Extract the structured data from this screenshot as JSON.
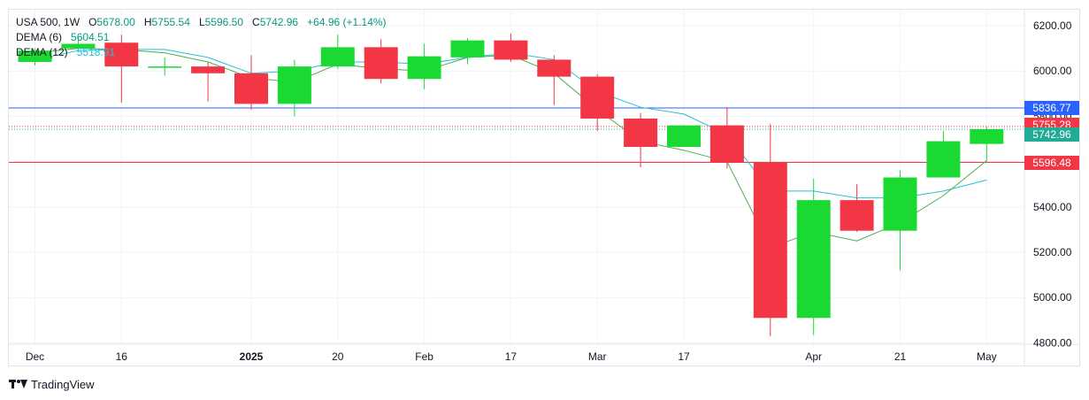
{
  "legend": {
    "symbol": "USA 500, 1W",
    "o_label": "O",
    "o_value": "5678.00",
    "h_label": "H",
    "h_value": "5755.54",
    "l_label": "L",
    "l_value": "5596.50",
    "c_label": "C",
    "c_value": "5742.96",
    "change": "+64.96 (+1.14%)",
    "dema6_label": "DEMA (6)",
    "dema6_value": "5604.51",
    "dema12_label": "DEMA (12)",
    "dema12_value": "5518.91"
  },
  "branding": {
    "text": "TradingView",
    "icon": "tradingview-logo-icon"
  },
  "price_tags": [
    {
      "label": "5836.77",
      "value": 5836.77,
      "color": "#2962ff"
    },
    {
      "label": "5755.28",
      "value": 5755.28,
      "color": "#f23645"
    },
    {
      "label": "5742.96",
      "value": 5742.96,
      "color": "#22ab94"
    },
    {
      "label": "5596.48",
      "value": 5596.48,
      "color": "#f23645"
    }
  ],
  "colors": {
    "up": "#1ad933",
    "down": "#f23645",
    "grid": "#f0f3fa",
    "axis_text": "#131722",
    "dema6": "#4caf50",
    "dema12": "#22c2d6",
    "line_blue": "#2962ff",
    "line_red": "#f23645"
  },
  "chart_data": {
    "type": "candlestick",
    "symbol": "USA 500",
    "interval": "1W",
    "x_tick_labels": [
      "Dec",
      "16",
      "2025",
      "20",
      "Feb",
      "17",
      "Mar",
      "17",
      "Apr",
      "21",
      "May"
    ],
    "x_tick_index": [
      0,
      2,
      5,
      7,
      9,
      11,
      13,
      15,
      18,
      20,
      22
    ],
    "y_ticks": [
      4800,
      5000,
      5200,
      5400,
      5600,
      5800,
      6000,
      6200
    ],
    "y_tick_labels": [
      "4800.00",
      "5000.00",
      "5200.00",
      "5400.00",
      "5600.00",
      "5800.00",
      "6000.00",
      "6200.00"
    ],
    "ylim": [
      4700,
      6290
    ],
    "grid": true,
    "candles": [
      {
        "o": 6040,
        "h": 6100,
        "l": 6025,
        "c": 6090
      },
      {
        "o": 6100,
        "h": 6150,
        "l": 6090,
        "c": 6120
      },
      {
        "o": 6125,
        "h": 6160,
        "l": 5860,
        "c": 6020
      },
      {
        "o": 6020,
        "h": 6060,
        "l": 5980,
        "c": 6020
      },
      {
        "o": 6020,
        "h": 6040,
        "l": 5865,
        "c": 5990
      },
      {
        "o": 5990,
        "h": 6070,
        "l": 5830,
        "c": 5855
      },
      {
        "o": 5855,
        "h": 6050,
        "l": 5800,
        "c": 6020
      },
      {
        "o": 6020,
        "h": 6160,
        "l": 6010,
        "c": 6105
      },
      {
        "o": 6105,
        "h": 6140,
        "l": 5945,
        "c": 5965
      },
      {
        "o": 5965,
        "h": 6120,
        "l": 5920,
        "c": 6065
      },
      {
        "o": 6060,
        "h": 6145,
        "l": 6030,
        "c": 6135
      },
      {
        "o": 6135,
        "h": 6165,
        "l": 6040,
        "c": 6050
      },
      {
        "o": 6050,
        "h": 6070,
        "l": 5850,
        "c": 5975
      },
      {
        "o": 5975,
        "h": 5985,
        "l": 5735,
        "c": 5790
      },
      {
        "o": 5790,
        "h": 5815,
        "l": 5575,
        "c": 5665
      },
      {
        "o": 5665,
        "h": 5760,
        "l": 5665,
        "c": 5760
      },
      {
        "o": 5760,
        "h": 5840,
        "l": 5570,
        "c": 5595
      },
      {
        "o": 5595,
        "h": 5765,
        "l": 4830,
        "c": 4910
      },
      {
        "o": 4910,
        "h": 5525,
        "l": 4835,
        "c": 5430
      },
      {
        "o": 5430,
        "h": 5500,
        "l": 5290,
        "c": 5295
      },
      {
        "o": 5295,
        "h": 5560,
        "l": 5120,
        "c": 5530
      },
      {
        "o": 5530,
        "h": 5735,
        "l": 5530,
        "c": 5690
      },
      {
        "o": 5678,
        "h": 5755.54,
        "l": 5596.5,
        "c": 5742.96
      }
    ],
    "dema6": [
      6080,
      6100,
      6095,
      6080,
      6040,
      5970,
      5950,
      6030,
      6010,
      6000,
      6060,
      6070,
      5990,
      5830,
      5690,
      5650,
      5600,
      5220,
      5290,
      5250,
      5330,
      5450,
      5604.51
    ],
    "dema12": [
      6050,
      6090,
      6095,
      6095,
      6060,
      5990,
      6000,
      6040,
      6040,
      6030,
      6060,
      6080,
      6050,
      5910,
      5840,
      5810,
      5720,
      5470,
      5470,
      5440,
      5440,
      5470,
      5518.91
    ],
    "horizontal_lines": [
      5836.77,
      5755.28,
      5742.96,
      5596.48
    ]
  }
}
